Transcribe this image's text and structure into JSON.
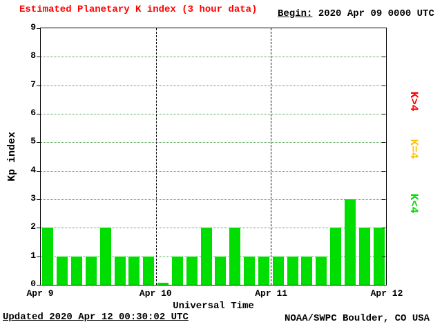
{
  "header": {
    "title": "Estimated Planetary K index (3 hour data)",
    "begin_label": "Begin:",
    "begin_value": "2020 Apr 09 0000 UTC"
  },
  "footer": {
    "updated": "Updated 2020 Apr 12 00:30:02 UTC",
    "source": "NOAA/SWPC Boulder, CO USA"
  },
  "legend": [
    {
      "label": "K>4",
      "color": "#ff0000"
    },
    {
      "label": "K=4",
      "color": "#ffc000"
    },
    {
      "label": "K<4",
      "color": "#00dd00"
    }
  ],
  "colors": {
    "title": "#ff0000",
    "text": "#000000",
    "bar_green": "#00dd00",
    "bar_yellow": "#ffc000",
    "bar_red": "#ff0000",
    "grid_dotted": "#3f9f3f",
    "axis": "#000000",
    "background": "#ffffff"
  },
  "chart_data": {
    "type": "bar",
    "title": "Estimated Planetary K index (3 hour data)",
    "begin": "2020 Apr 09 0000 UTC",
    "xlabel": "Universal Time",
    "ylabel": "Kp index",
    "ylim": [
      0,
      9
    ],
    "yticks": [
      0,
      1,
      2,
      3,
      4,
      5,
      6,
      7,
      8,
      9
    ],
    "xticklabels": [
      "Apr 9",
      "Apr 10",
      "Apr 11",
      "Apr 12"
    ],
    "bar_interval_hours": 3,
    "days": [
      {
        "date": "Apr 9",
        "kp": [
          2,
          1,
          1,
          1,
          2,
          1,
          1,
          1
        ]
      },
      {
        "date": "Apr 10",
        "kp": [
          0,
          1,
          1,
          2,
          1,
          2,
          1,
          1
        ]
      },
      {
        "date": "Apr 11",
        "kp": [
          1,
          1,
          1,
          1,
          2,
          3,
          2,
          2
        ]
      }
    ],
    "values": [
      2,
      1,
      1,
      1,
      2,
      1,
      1,
      1,
      0,
      1,
      1,
      2,
      1,
      2,
      1,
      1,
      1,
      1,
      1,
      1,
      2,
      3,
      2,
      2
    ],
    "color_rule": "green if Kp<4, yellow if Kp=4, red if Kp>4",
    "grid": "dotted horizontal at each integer; dashed vertical at day boundaries",
    "legend_position": "right, rotated 90deg"
  }
}
